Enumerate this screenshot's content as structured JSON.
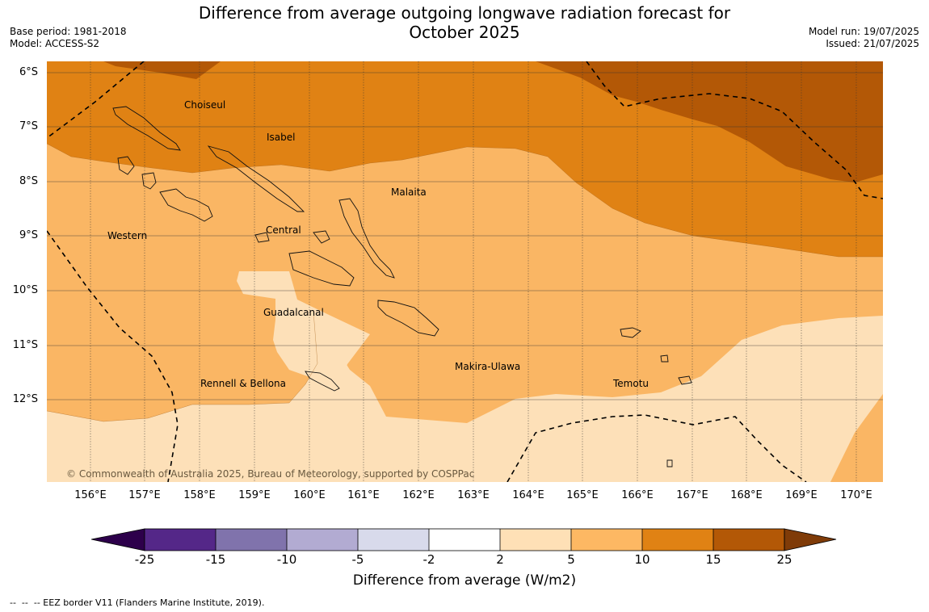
{
  "title": {
    "line1": "Difference from average outgoing longwave radiation forecast for",
    "line2": "October 2025"
  },
  "meta_left": {
    "base_period": "Base period: 1981-2018",
    "model": "Model: ACCESS-S2"
  },
  "meta_right": {
    "model_run": "Model run: 19/07/2025",
    "issued": "Issued: 21/07/2025"
  },
  "map": {
    "latitude_labels": [
      "6°S",
      "7°S",
      "8°S",
      "9°S",
      "10°S",
      "11°S",
      "12°S"
    ],
    "longitude_labels": [
      "156°E",
      "157°E",
      "158°E",
      "159°E",
      "160°E",
      "161°E",
      "162°E",
      "163°E",
      "164°E",
      "165°E",
      "166°E",
      "167°E",
      "168°E",
      "169°E",
      "170°E"
    ],
    "regions": [
      "Choiseul",
      "Isabel",
      "Malaita",
      "Western",
      "Central",
      "Guadalcanal",
      "Makira-Ulawa",
      "Rennell & Bellona",
      "Temotu"
    ],
    "copyright": "© Commonwealth of Australia 2025, Bureau of Meteorology, supported by COSPPac",
    "colors": {
      "band_2_5": "#fde0b8",
      "band_5_10": "#fab664",
      "band_10_15": "#e08214",
      "band_15_25": "#b35806",
      "eez_line": "#000000"
    }
  },
  "colorbar": {
    "ticks": [
      "-25",
      "-15",
      "-10",
      "-5",
      "-2",
      "2",
      "5",
      "10",
      "15",
      "25"
    ],
    "colors": [
      "#2d004b",
      "#542788",
      "#8073ac",
      "#b2abd2",
      "#d8daeb",
      "#ffffff",
      "#fee0b6",
      "#fdb863",
      "#e08214",
      "#b35806",
      "#7f3b08"
    ],
    "title": "Difference from average (W/m2)"
  },
  "footer": "--  --  -- EEZ border V11 (Flanders Marine Institute, 2019)."
}
